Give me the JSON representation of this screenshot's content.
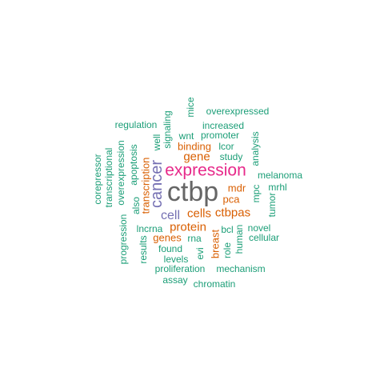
{
  "words": {
    "ctbp": "ctbp",
    "expression": "expression",
    "cancer": "cancer",
    "cell": "cell",
    "cells": "cells",
    "ctbpas": "ctbpas",
    "protein": "protein",
    "gene": "gene",
    "genes": "genes",
    "binding": "binding",
    "transcription": "transcription",
    "mdr": "mdr",
    "pca": "pca",
    "breast": "breast",
    "overexpressed": "overexpressed",
    "increased": "increased",
    "regulation": "regulation",
    "mice": "mice",
    "signaling": "signaling",
    "promoter": "promoter",
    "wnt": "wnt",
    "well": "well",
    "lcor": "lcor",
    "study": "study",
    "analysis": "analysis",
    "melanoma": "melanoma",
    "mrhl": "mrhl",
    "mpc": "mpc",
    "tumor": "tumor",
    "apoptosis": "apoptosis",
    "overexpression": "overexpression",
    "transcriptional": "transcriptional",
    "corepressor": "corepressor",
    "also": "also",
    "progression": "progression",
    "lncrna": "lncrna",
    "results": "results",
    "found": "found",
    "levels": "levels",
    "evi": "evi",
    "rna": "rna",
    "bcl": "bcl",
    "human": "human",
    "role": "role",
    "novel": "novel",
    "cellular": "cellular",
    "mechanism": "mechanism",
    "proliferation": "proliferation",
    "assay": "assay",
    "chromatin": "chromatin"
  },
  "colors": {
    "green": "#1b9e77",
    "orange": "#d95f02",
    "purple": "#7570b3",
    "pink": "#e7298a",
    "gray": "#666666"
  }
}
